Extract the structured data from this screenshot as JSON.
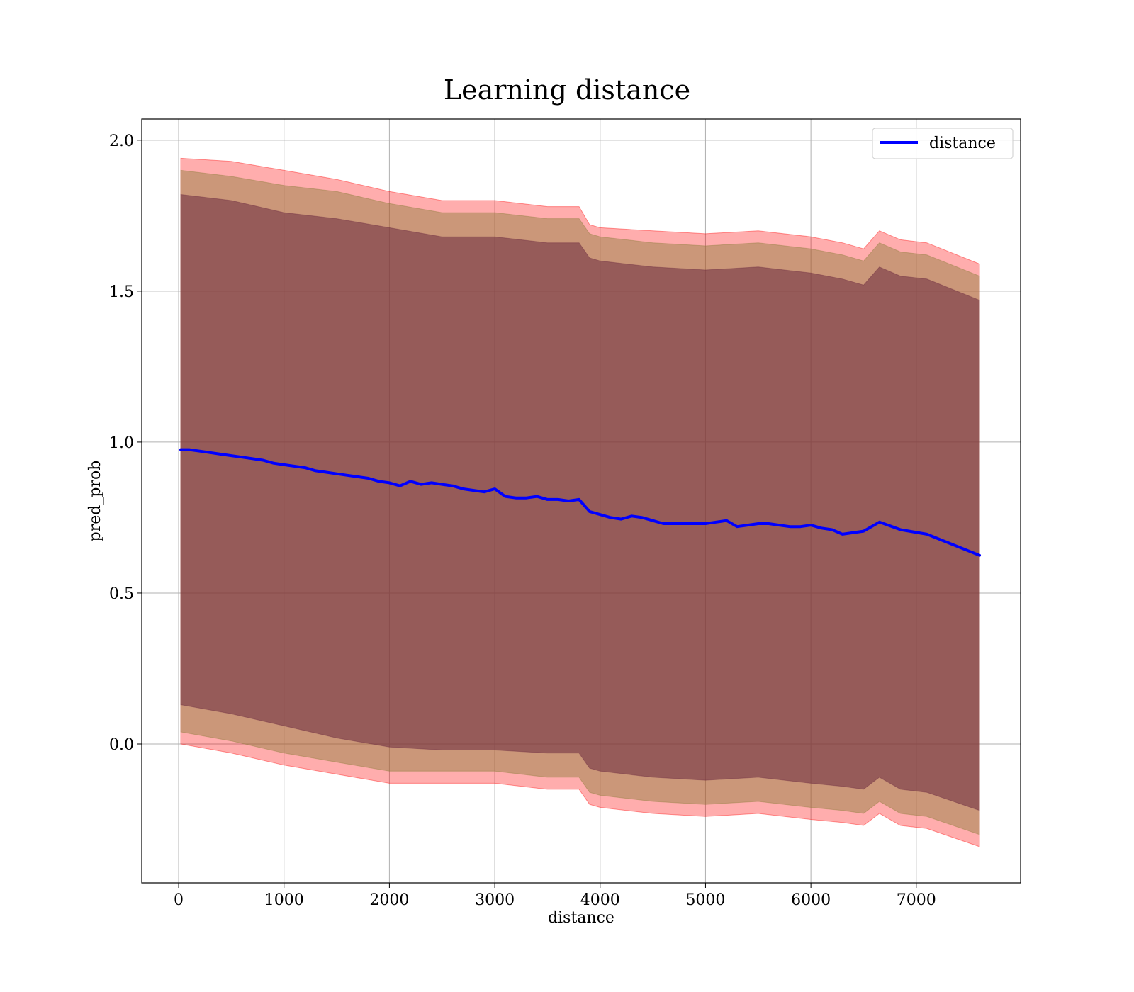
{
  "chart_data": {
    "type": "area",
    "title": "Learning distance",
    "xlabel": "distance",
    "ylabel": "pred_prob",
    "xlim": [
      -350,
      7990
    ],
    "ylim": [
      -0.46,
      2.07
    ],
    "xticks": [
      0,
      1000,
      2000,
      3000,
      4000,
      5000,
      6000,
      7000
    ],
    "xtick_labels": [
      "0",
      "1000",
      "2000",
      "3000",
      "4000",
      "5000",
      "6000",
      "7000"
    ],
    "yticks": [
      0.0,
      0.5,
      1.0,
      1.5,
      2.0
    ],
    "ytick_labels": [
      "0.0",
      "0.5",
      "1.0",
      "1.5",
      "2.0"
    ],
    "grid": true,
    "legend_position": "top-right",
    "colors": {
      "line": "#0000ff",
      "band_outer": "#ff0000",
      "band_middle": "#8b7d3a",
      "band_inner": "#6b2a40",
      "grid": "#b0b0b0"
    },
    "series": [
      {
        "name": "distance",
        "kind": "line",
        "x": [
          20,
          100,
          200,
          300,
          400,
          500,
          600,
          700,
          800,
          900,
          1000,
          1100,
          1200,
          1300,
          1400,
          1500,
          1600,
          1700,
          1800,
          1900,
          2000,
          2100,
          2200,
          2300,
          2400,
          2500,
          2600,
          2700,
          2800,
          2900,
          3000,
          3100,
          3200,
          3300,
          3400,
          3500,
          3600,
          3700,
          3800,
          3900,
          4000,
          4100,
          4200,
          4300,
          4400,
          4500,
          4600,
          4700,
          4800,
          4900,
          5000,
          5100,
          5200,
          5300,
          5400,
          5500,
          5600,
          5700,
          5800,
          5900,
          6000,
          6100,
          6200,
          6300,
          6500,
          6650,
          6850,
          7100,
          7600
        ],
        "y": [
          0.975,
          0.975,
          0.97,
          0.965,
          0.96,
          0.955,
          0.95,
          0.945,
          0.94,
          0.93,
          0.925,
          0.92,
          0.915,
          0.905,
          0.9,
          0.895,
          0.89,
          0.885,
          0.88,
          0.87,
          0.865,
          0.855,
          0.87,
          0.86,
          0.865,
          0.86,
          0.855,
          0.845,
          0.84,
          0.835,
          0.845,
          0.82,
          0.815,
          0.815,
          0.82,
          0.81,
          0.81,
          0.805,
          0.81,
          0.77,
          0.76,
          0.75,
          0.745,
          0.755,
          0.75,
          0.74,
          0.73,
          0.73,
          0.73,
          0.73,
          0.73,
          0.735,
          0.74,
          0.72,
          0.725,
          0.73,
          0.73,
          0.725,
          0.72,
          0.72,
          0.725,
          0.715,
          0.71,
          0.695,
          0.705,
          0.735,
          0.71,
          0.695,
          0.625
        ]
      },
      {
        "kind": "band",
        "level": "outer",
        "x": [
          20,
          500,
          1000,
          1500,
          2000,
          2500,
          3000,
          3500,
          3800,
          3900,
          4000,
          4500,
          5000,
          5500,
          6000,
          6300,
          6500,
          6650,
          6850,
          7100,
          7600
        ],
        "upper": [
          1.94,
          1.93,
          1.9,
          1.87,
          1.83,
          1.8,
          1.8,
          1.78,
          1.78,
          1.72,
          1.71,
          1.7,
          1.69,
          1.7,
          1.68,
          1.66,
          1.64,
          1.7,
          1.67,
          1.66,
          1.59
        ],
        "lower": [
          0.0,
          -0.03,
          -0.07,
          -0.1,
          -0.13,
          -0.13,
          -0.13,
          -0.15,
          -0.15,
          -0.2,
          -0.21,
          -0.23,
          -0.24,
          -0.23,
          -0.25,
          -0.26,
          -0.27,
          -0.23,
          -0.27,
          -0.28,
          -0.34
        ]
      },
      {
        "kind": "band",
        "level": "middle",
        "x": [
          20,
          500,
          1000,
          1500,
          2000,
          2500,
          3000,
          3500,
          3800,
          3900,
          4000,
          4500,
          5000,
          5500,
          6000,
          6300,
          6500,
          6650,
          6850,
          7100,
          7600
        ],
        "upper": [
          1.9,
          1.88,
          1.85,
          1.83,
          1.79,
          1.76,
          1.76,
          1.74,
          1.74,
          1.69,
          1.68,
          1.66,
          1.65,
          1.66,
          1.64,
          1.62,
          1.6,
          1.66,
          1.63,
          1.62,
          1.55
        ],
        "lower": [
          0.04,
          0.01,
          -0.03,
          -0.06,
          -0.09,
          -0.09,
          -0.09,
          -0.11,
          -0.11,
          -0.16,
          -0.17,
          -0.19,
          -0.2,
          -0.19,
          -0.21,
          -0.22,
          -0.23,
          -0.19,
          -0.23,
          -0.24,
          -0.3
        ]
      },
      {
        "kind": "band",
        "level": "inner",
        "x": [
          20,
          500,
          1000,
          1500,
          2000,
          2500,
          3000,
          3500,
          3800,
          3900,
          4000,
          4500,
          5000,
          5500,
          6000,
          6300,
          6500,
          6650,
          6850,
          7100,
          7600
        ],
        "upper": [
          1.82,
          1.8,
          1.76,
          1.74,
          1.71,
          1.68,
          1.68,
          1.66,
          1.66,
          1.61,
          1.6,
          1.58,
          1.57,
          1.58,
          1.56,
          1.54,
          1.52,
          1.58,
          1.55,
          1.54,
          1.47
        ],
        "lower": [
          0.13,
          0.1,
          0.06,
          0.02,
          -0.01,
          -0.02,
          -0.02,
          -0.03,
          -0.03,
          -0.08,
          -0.09,
          -0.11,
          -0.12,
          -0.11,
          -0.13,
          -0.14,
          -0.15,
          -0.11,
          -0.15,
          -0.16,
          -0.22
        ]
      }
    ]
  }
}
